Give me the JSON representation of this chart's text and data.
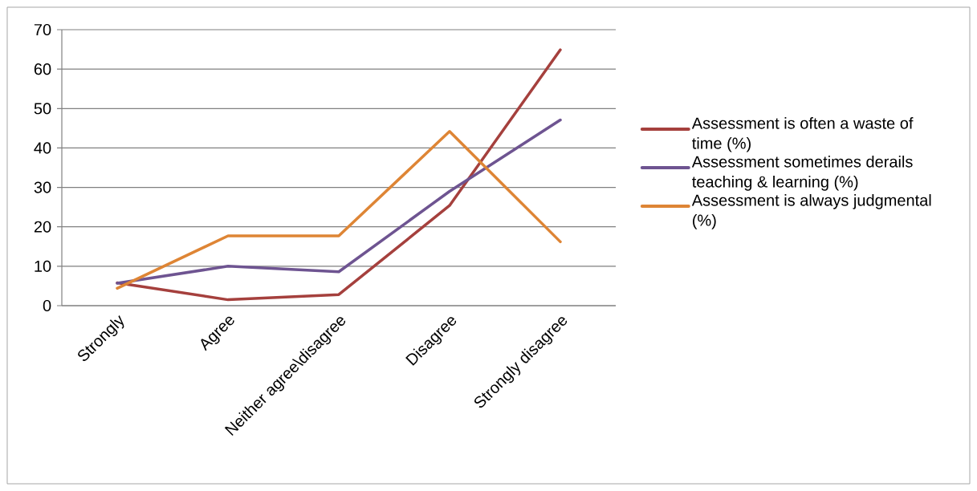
{
  "chart_data": {
    "type": "line",
    "categories": [
      "Strongly",
      "Agree",
      "Neither agree\\disagree",
      "Disagree",
      "Strongly disagree"
    ],
    "series": [
      {
        "name": "Assessment is often a waste of time (%)",
        "color": "#a5403d",
        "values": [
          5.8,
          1.5,
          2.8,
          25.4,
          64.9
        ]
      },
      {
        "name": "Assessment sometimes derails teaching & learning (%)",
        "color": "#6e5491",
        "values": [
          5.7,
          10.0,
          8.6,
          29.0,
          47.1
        ]
      },
      {
        "name": "Assessment is always judgmental (%)",
        "color": "#de8535",
        "values": [
          4.4,
          17.7,
          17.7,
          44.2,
          16.2
        ]
      }
    ],
    "ylim": [
      0,
      70
    ],
    "yticks": [
      0,
      10,
      20,
      30,
      40,
      50,
      60,
      70
    ],
    "grid": "y",
    "legend": "right",
    "marker": "none",
    "line_style": "solid"
  }
}
